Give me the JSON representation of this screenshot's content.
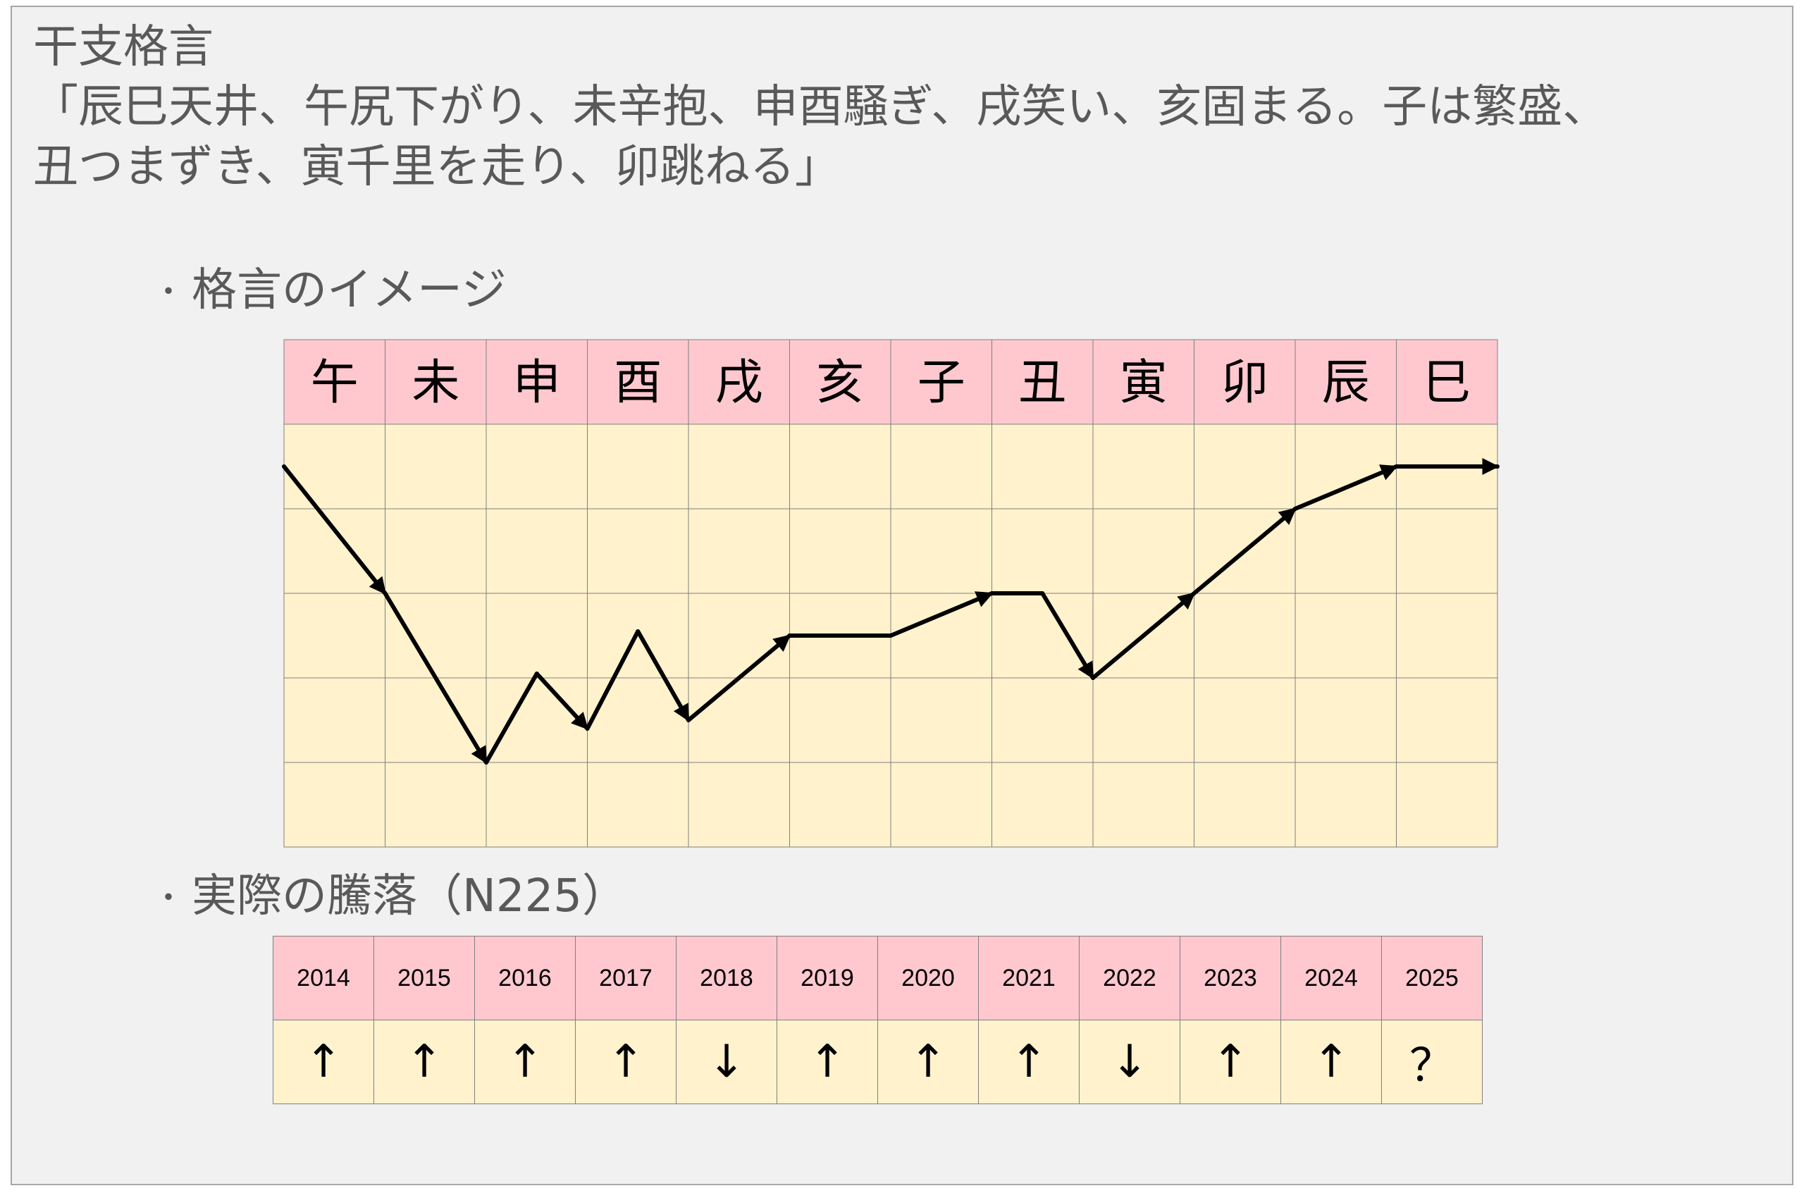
{
  "title": "干支格言",
  "proverb_line1": "「辰巳天井、午尻下がり、未辛抱、申酉騒ぎ、戌笑い、亥固まる。子は繁盛、",
  "proverb_line2": "丑つまずき、寅千里を走り、卯跳ねる」",
  "bullet1": {
    "mark": "・",
    "text": "格言のイメージ"
  },
  "bullet2": {
    "mark": "・",
    "text": "実際の騰落（N225）"
  },
  "colors": {
    "header_pink": "#ffc8cf",
    "cell_yellow": "#fff2cc",
    "text_gray": "#595959"
  },
  "chart_data": [
    {
      "type": "line",
      "categories": [
        "午",
        "未",
        "申",
        "酉",
        "戌",
        "亥",
        "子",
        "丑",
        "寅",
        "卯",
        "辰",
        "巳"
      ],
      "grid_rows": 5,
      "ylim": [
        0,
        5
      ],
      "points": [
        {
          "x": 0,
          "y": 4.5
        },
        {
          "x": 1,
          "y": 3.0
        },
        {
          "x": 2,
          "y": 1.0
        },
        {
          "x": 2.5,
          "y": 2.05
        },
        {
          "x": 3,
          "y": 1.4
        },
        {
          "x": 3.5,
          "y": 2.55
        },
        {
          "x": 4,
          "y": 1.5
        },
        {
          "x": 5,
          "y": 2.5
        },
        {
          "x": 6,
          "y": 2.5
        },
        {
          "x": 7,
          "y": 3.0
        },
        {
          "x": 7.5,
          "y": 3.0
        },
        {
          "x": 8,
          "y": 2.0
        },
        {
          "x": 9,
          "y": 3.0
        },
        {
          "x": 10,
          "y": 4.0
        },
        {
          "x": 11,
          "y": 4.5
        },
        {
          "x": 12,
          "y": 4.5
        }
      ],
      "arrowheads_at": [
        1,
        2,
        4,
        6,
        7,
        9,
        11,
        12,
        13,
        14,
        15
      ]
    },
    {
      "type": "table",
      "years": [
        "2014",
        "2015",
        "2016",
        "2017",
        "2018",
        "2019",
        "2020",
        "2021",
        "2022",
        "2023",
        "2024",
        "2025"
      ],
      "moves": [
        "↑",
        "↑",
        "↑",
        "↑",
        "↓",
        "↑",
        "↑",
        "↑",
        "↓",
        "↑",
        "↑",
        "？"
      ]
    }
  ]
}
